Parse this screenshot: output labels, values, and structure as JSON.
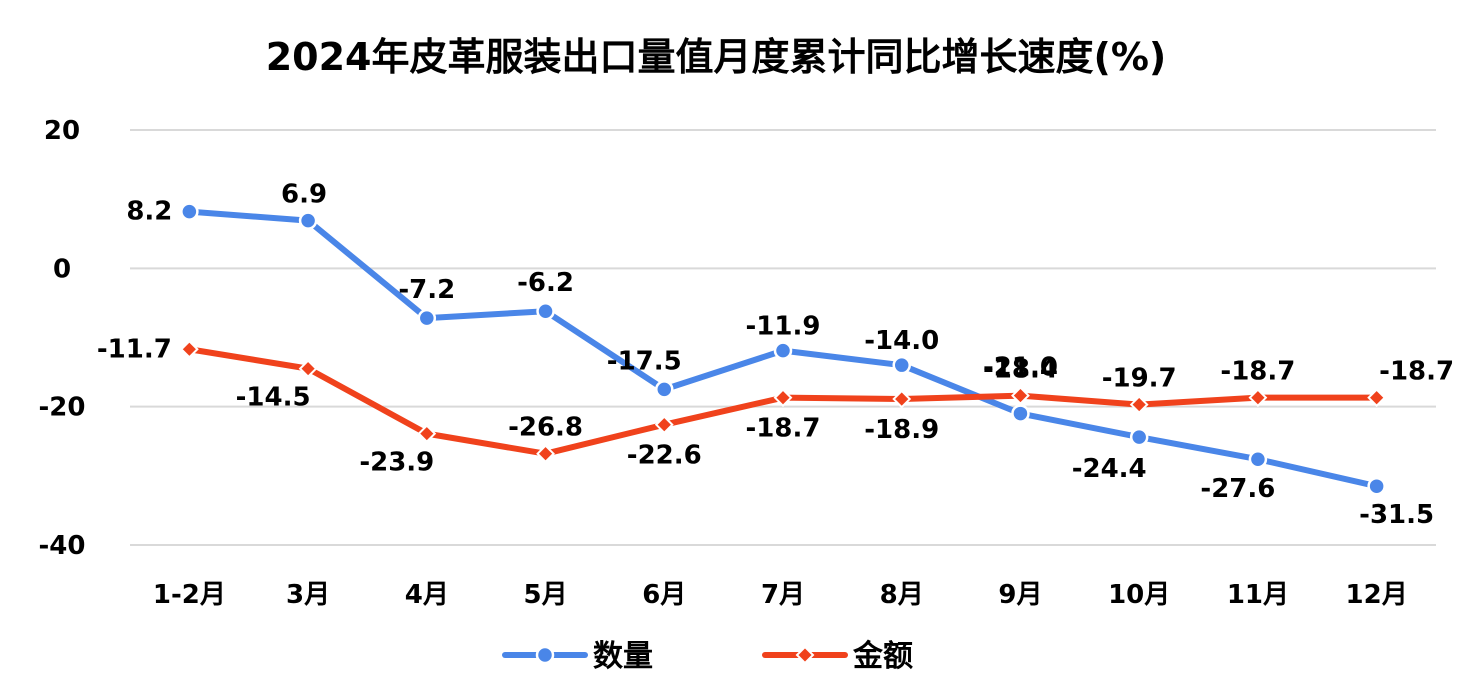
{
  "chart_data": {
    "type": "line",
    "title": "2024年皮革服装出口量值月度累计同比增长速度(%)",
    "categories": [
      "1-2月",
      "3月",
      "4月",
      "5月",
      "6月",
      "7月",
      "8月",
      "9月",
      "10月",
      "11月",
      "12月"
    ],
    "ylim": [
      -40,
      20
    ],
    "yticks": [
      20,
      0,
      -20,
      -40
    ],
    "grid": true,
    "legend_position": "bottom",
    "series": [
      {
        "name": "数量",
        "color": "#4a86e8",
        "marker": "circle",
        "values": [
          8.2,
          6.9,
          -7.2,
          -6.2,
          -17.5,
          -11.9,
          -14.0,
          -21.0,
          -24.4,
          -27.6,
          -31.5
        ],
        "labels": [
          "8.2",
          "6.9",
          "-7.2",
          "-6.2",
          "-17.5",
          "-11.9",
          "-14.0",
          "-21.0",
          "-24.4",
          "-27.6",
          "-31.5"
        ]
      },
      {
        "name": "金额",
        "color": "#f0421c",
        "marker": "diamond",
        "values": [
          -11.7,
          -14.5,
          -23.9,
          -26.8,
          -22.6,
          -18.7,
          -18.9,
          -18.4,
          -19.7,
          -18.7,
          -18.7
        ],
        "labels": [
          "-11.7",
          "-14.5",
          "-23.9",
          "-26.8",
          "-22.6",
          "-18.7",
          "-18.9",
          "-18.4",
          "-19.7",
          "-18.7",
          "-18.7"
        ]
      }
    ]
  }
}
